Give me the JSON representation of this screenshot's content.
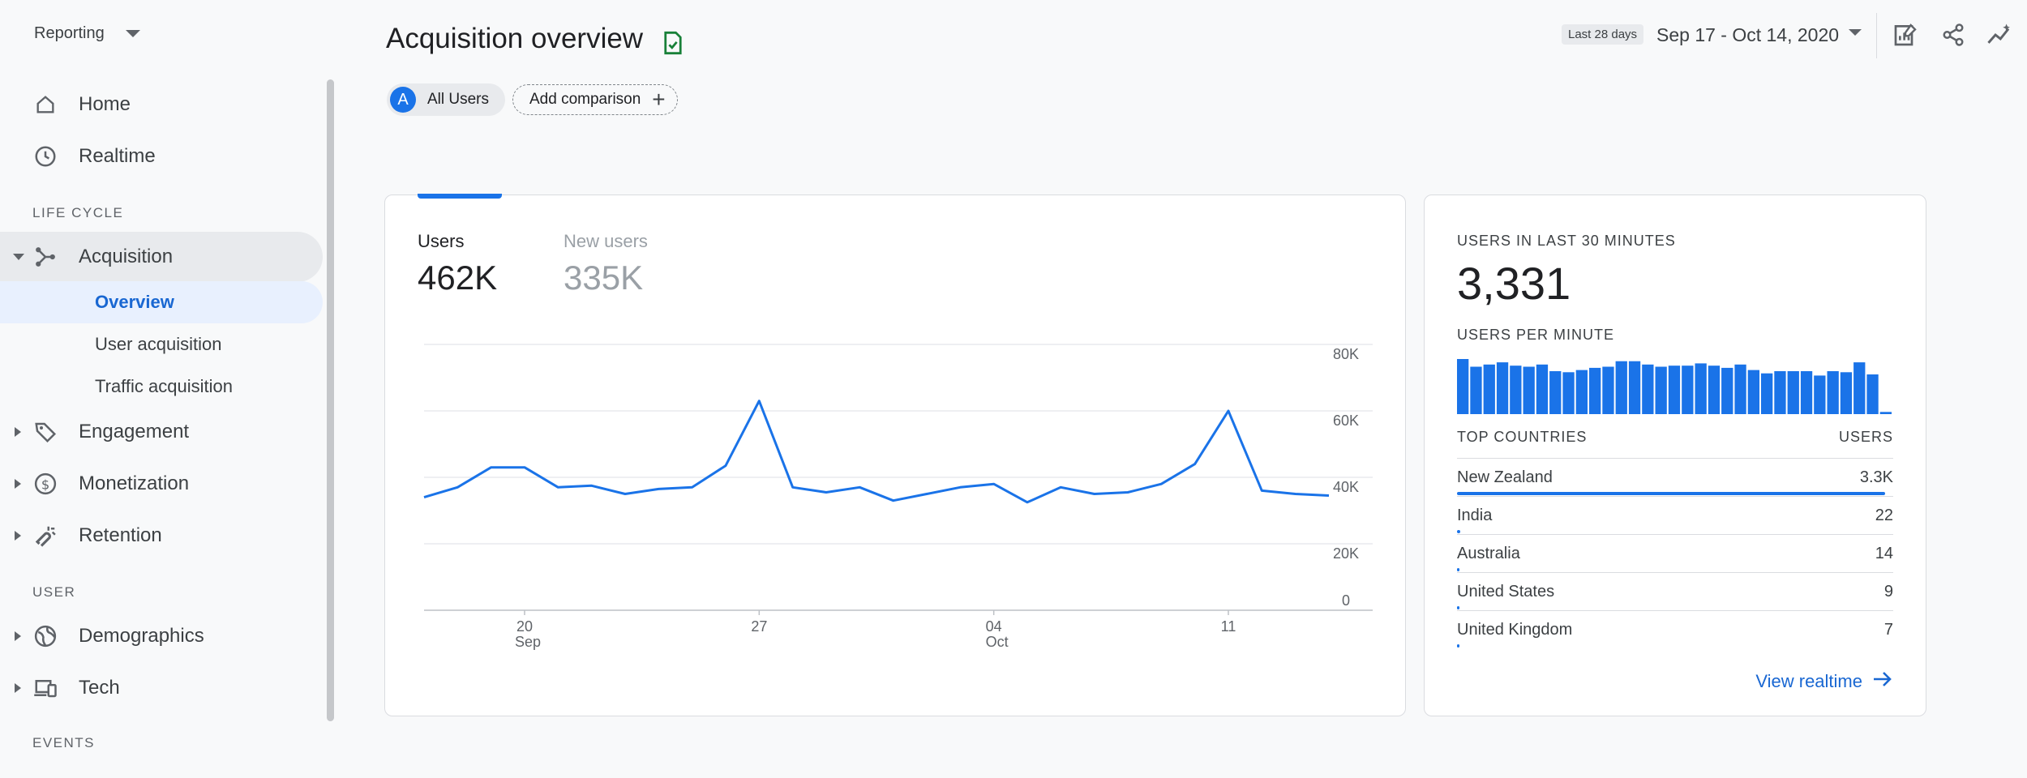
{
  "sidebar": {
    "reporting_label": "Reporting",
    "home": "Home",
    "realtime": "Realtime",
    "lifecycle_heading": "LIFE CYCLE",
    "acquisition": "Acquisition",
    "acq_sub": [
      "Overview",
      "User acquisition",
      "Traffic acquisition"
    ],
    "engagement": "Engagement",
    "monetization": "Monetization",
    "retention": "Retention",
    "user_heading": "USER",
    "demographics": "Demographics",
    "tech": "Tech",
    "events_heading": "EVENTS"
  },
  "header": {
    "title": "Acquisition overview",
    "chip_all_users": "All Users",
    "chip_all_users_avatar": "A",
    "add_comparison": "Add comparison",
    "range_badge": "Last 28 days",
    "date_range": "Sep 17 - Oct 14, 2020",
    "icons": [
      "customize-report-icon",
      "share-icon",
      "insights-icon"
    ]
  },
  "colors": {
    "accent": "#1a73e8",
    "check_green": "#188038"
  },
  "chart_card": {
    "users_label": "Users",
    "users_value": "462K",
    "new_users_label": "New users",
    "new_users_value": "335K"
  },
  "chart_data": {
    "type": "line",
    "series": [
      {
        "values": [
          34000,
          37000,
          43000,
          43000,
          37000,
          37500,
          35000,
          36500,
          37000,
          43500,
          63000,
          37000,
          35500,
          37000,
          33000,
          35000,
          37000,
          38000,
          32500,
          37000,
          35000,
          35500,
          38000,
          44000,
          60000,
          36000,
          35000,
          34500
        ]
      }
    ],
    "x_labels": [
      {
        "label": "20",
        "sub": "Sep",
        "index": 3
      },
      {
        "label": "27",
        "sub": "",
        "index": 10
      },
      {
        "label": "04",
        "sub": "Oct",
        "index": 17
      },
      {
        "label": "11",
        "sub": "",
        "index": 24
      }
    ],
    "y_ticks": [
      "80K",
      "60K",
      "40K",
      "20K",
      "0"
    ],
    "ylim": [
      0,
      80000
    ],
    "grid": true
  },
  "realtime": {
    "heading": "USERS IN LAST 30 MINUTES",
    "value": "3,331",
    "per_minute_heading": "USERS PER MINUTE",
    "per_minute": [
      100,
      86,
      90,
      94,
      88,
      86,
      90,
      78,
      76,
      80,
      84,
      86,
      96,
      96,
      90,
      86,
      88,
      88,
      92,
      88,
      84,
      90,
      80,
      74,
      78,
      78,
      78,
      70,
      78,
      76,
      94,
      72,
      4
    ],
    "top_countries_heading": "TOP COUNTRIES",
    "users_heading": "USERS",
    "countries": [
      {
        "name": "New Zealand",
        "value": "3.3K",
        "fraction": 1.0
      },
      {
        "name": "India",
        "value": "22",
        "fraction": 0.007
      },
      {
        "name": "Australia",
        "value": "14",
        "fraction": 0.004
      },
      {
        "name": "United States",
        "value": "9",
        "fraction": 0.003
      },
      {
        "name": "United Kingdom",
        "value": "7",
        "fraction": 0.002
      }
    ],
    "view_realtime": "View realtime"
  }
}
